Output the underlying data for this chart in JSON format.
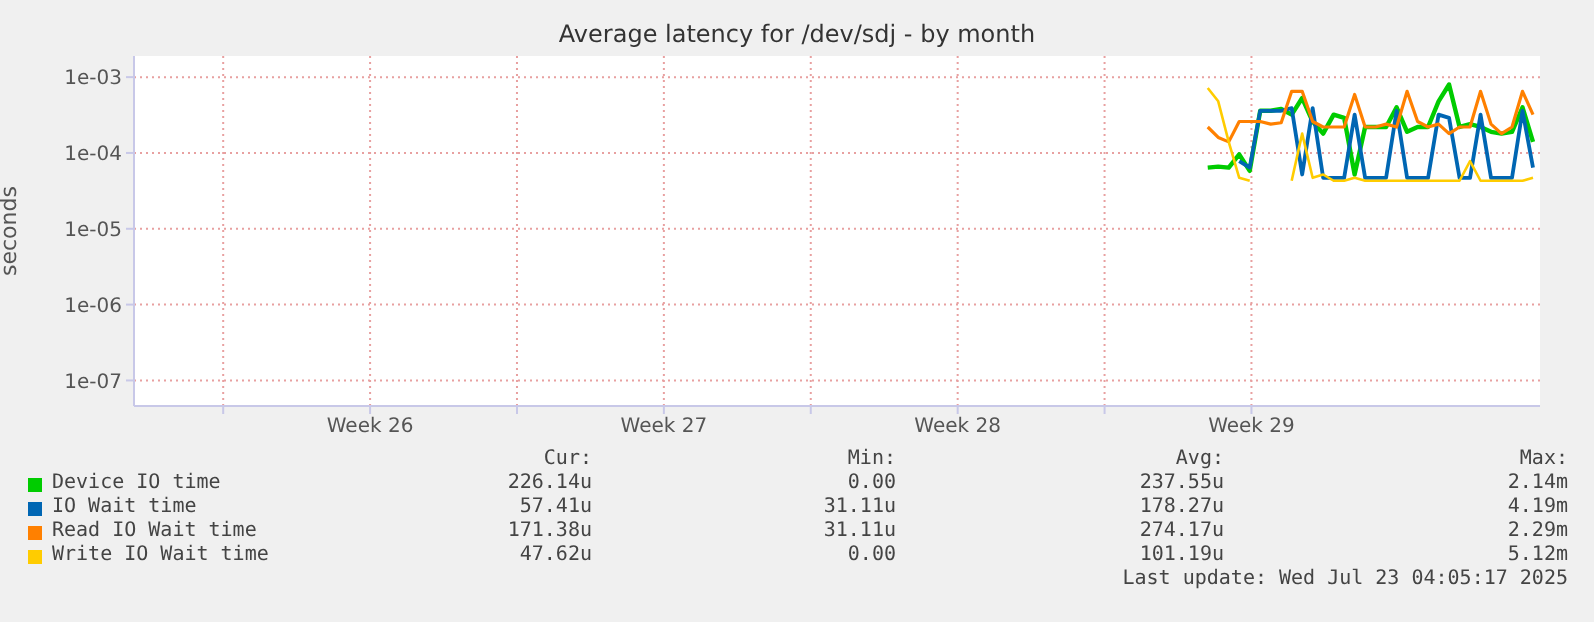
{
  "chart_data": {
    "type": "line",
    "title": "Average latency for /dev/sdj - by month",
    "ylabel": "seconds",
    "log": true,
    "grid": true,
    "legend": "bottom",
    "marker": "none",
    "line_style": "solid",
    "x": [
      "2025-07-15T06:00",
      "2025-07-15T12:00",
      "2025-07-15T18:00",
      "2025-07-16T00:00",
      "2025-07-16T06:00",
      "2025-07-16T12:00",
      "2025-07-16T18:00",
      "2025-07-17T00:00",
      "2025-07-17T06:00",
      "2025-07-17T12:00",
      "2025-07-17T18:00",
      "2025-07-18T00:00",
      "2025-07-18T06:00",
      "2025-07-18T12:00",
      "2025-07-18T18:00",
      "2025-07-19T00:00",
      "2025-07-19T06:00",
      "2025-07-19T12:00",
      "2025-07-19T18:00",
      "2025-07-20T00:00",
      "2025-07-20T06:00",
      "2025-07-20T12:00",
      "2025-07-20T18:00",
      "2025-07-21T00:00",
      "2025-07-21T06:00",
      "2025-07-21T12:00",
      "2025-07-21T18:00",
      "2025-07-22T00:00",
      "2025-07-22T06:00",
      "2025-07-22T12:00",
      "2025-07-22T18:00",
      "2025-07-23T00:00"
    ],
    "xlim": [
      "2025-06-19T16:00",
      "2025-07-23T04:00"
    ],
    "xticks": [
      {
        "value": "2025-06-21T19:00",
        "label": null
      },
      {
        "value": "2025-06-25T07:00",
        "label": "Week 26"
      },
      {
        "value": "2025-06-28T19:00",
        "label": null
      },
      {
        "value": "2025-07-02T07:00",
        "label": "Week 27"
      },
      {
        "value": "2025-07-05T19:00",
        "label": null
      },
      {
        "value": "2025-07-09T07:00",
        "label": "Week 28"
      },
      {
        "value": "2025-07-12T19:00",
        "label": null
      },
      {
        "value": "2025-07-16T07:00",
        "label": "Week 29"
      }
    ],
    "ylim": [
      4.6e-08,
      0.0019
    ],
    "yticks": [
      {
        "value": 1e-07,
        "label": "1e-07"
      },
      {
        "value": 1e-06,
        "label": "1e-06"
      },
      {
        "value": 1e-05,
        "label": "1e-05"
      },
      {
        "value": 0.0001,
        "label": "1e-04"
      },
      {
        "value": 0.001,
        "label": "1e-03"
      }
    ],
    "series": [
      {
        "name": "Device IO time",
        "color": "#00cc00",
        "values": [
          6.4e-05,
          6.6e-05,
          6.4e-05,
          9.6e-05,
          5.8e-05,
          0.00036,
          0.00036,
          0.00038,
          0.00032,
          0.00053,
          0.00026,
          0.00018,
          0.00032,
          0.00029,
          5.2e-05,
          0.00022,
          0.00022,
          0.00022,
          0.0004,
          0.00019,
          0.00022,
          0.00022,
          0.00048,
          0.0008,
          0.00022,
          0.00024,
          0.00022,
          0.00019,
          0.00018,
          0.00019,
          0.0004,
          0.00014
        ]
      },
      {
        "name": "IO Wait time",
        "color": "#0066b3",
        "values": [
          null,
          null,
          null,
          7.8e-05,
          6.4e-05,
          0.00036,
          0.00036,
          0.00036,
          0.00039,
          5.2e-05,
          0.00039,
          4.7e-05,
          4.7e-05,
          4.7e-05,
          0.00032,
          4.7e-05,
          4.7e-05,
          4.7e-05,
          0.00036,
          4.7e-05,
          4.7e-05,
          4.7e-05,
          0.00032,
          0.00029,
          4.7e-05,
          4.7e-05,
          0.00032,
          4.7e-05,
          4.7e-05,
          4.7e-05,
          0.00036,
          6.4e-05
        ]
      },
      {
        "name": "Read IO Wait time",
        "color": "#ff8000",
        "values": [
          0.00022,
          0.00016,
          0.00014,
          0.00026,
          0.00026,
          0.00026,
          0.00024,
          0.00025,
          0.00065,
          0.00065,
          0.00026,
          0.00022,
          0.00022,
          0.00022,
          0.00059,
          0.00022,
          0.00022,
          0.00024,
          0.00022,
          0.00065,
          0.00026,
          0.00022,
          0.00024,
          0.00018,
          0.00022,
          0.00022,
          0.00065,
          0.00024,
          0.00018,
          0.00022,
          0.00065,
          0.00032
        ]
      },
      {
        "name": "Write IO Wait time",
        "color": "#ffcc00",
        "values": [
          0.00072,
          0.00048,
          0.00014,
          4.7e-05,
          4.3e-05,
          null,
          null,
          null,
          4.3e-05,
          0.00018,
          4.7e-05,
          5.2e-05,
          4.3e-05,
          4.3e-05,
          4.7e-05,
          4.3e-05,
          4.3e-05,
          4.3e-05,
          4.3e-05,
          4.3e-05,
          4.3e-05,
          4.3e-05,
          4.3e-05,
          4.3e-05,
          4.3e-05,
          7.8e-05,
          4.3e-05,
          4.3e-05,
          4.3e-05,
          4.3e-05,
          4.3e-05,
          4.7e-05
        ]
      }
    ],
    "annotations": [
      "Cur:",
      "Min:",
      "Avg:",
      "Max:",
      "226.14u",
      "0.00",
      "237.55u",
      "2.14m",
      "57.41u",
      "31.11u",
      "178.27u",
      "4.19m",
      "171.38u",
      "31.11u",
      "274.17u",
      "2.29m",
      "47.62u",
      "0.00",
      "101.19u",
      "5.12m",
      "Last update: Wed Jul 23 04:05:17 2025"
    ]
  }
}
